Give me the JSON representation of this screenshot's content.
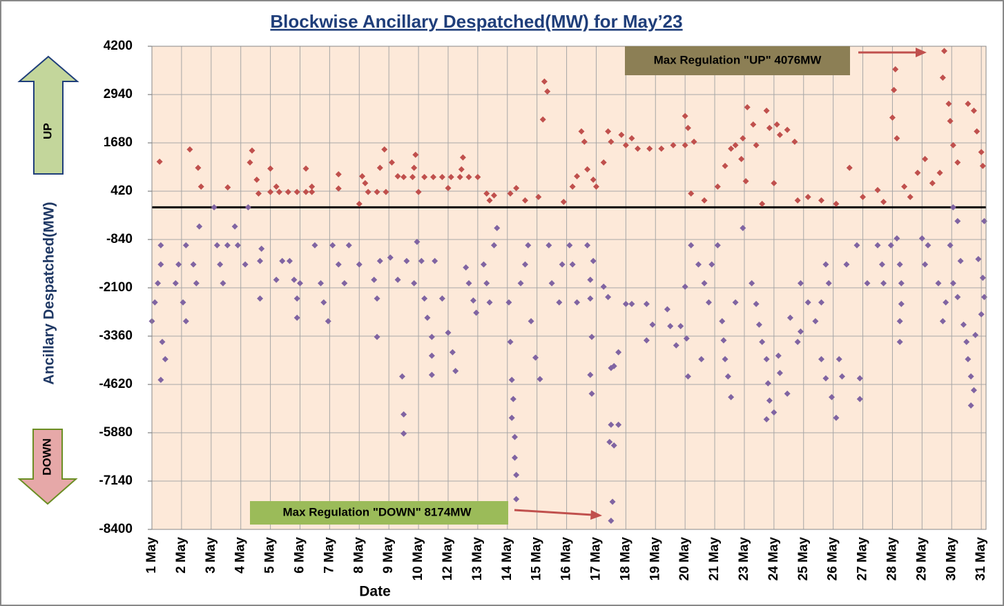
{
  "chart_data": {
    "type": "scatter",
    "title": "Blockwise Ancillary Despatched(MW) for  May’23",
    "x_label": "Date",
    "y_label": "Ancillary Despatched(MW)",
    "categories": [
      "1 May",
      "2 May",
      "3 May",
      "4 May",
      "5 May",
      "6 May",
      "7 May",
      "8 May",
      "9 May",
      "10 May",
      "12 May",
      "13 May",
      "14 May",
      "15 May",
      "16 May",
      "17 May",
      "18 May",
      "19 May",
      "20 May",
      "21 May",
      "23 May",
      "24 May",
      "25 May",
      "26 May",
      "27 May",
      "28 May",
      "29 May",
      "30 May",
      "31 May"
    ],
    "xlim": [
      1,
      29.16
    ],
    "ylim": [
      -8400,
      4200
    ],
    "yticks": [
      4200,
      2940,
      1680,
      420,
      -840,
      -2100,
      -3360,
      -4620,
      -5880,
      -7140,
      -8400
    ],
    "grid": true,
    "series": [
      {
        "name": "UP",
        "color": "#c0504d",
        "x": [
          1.26,
          2.28,
          2.56,
          2.66,
          3.56,
          4.38,
          4.31,
          4.54,
          4.6,
          5.0,
          5.3,
          5.6,
          5.9,
          6.2,
          6.4,
          5.0,
          5.2,
          6.2,
          6.4,
          7.3,
          7.3,
          8.0,
          8.1,
          8.2,
          8.3,
          8.6,
          8.9,
          8.7,
          8.85,
          9.1,
          9.3,
          9.5,
          9.8,
          10.2,
          10.5,
          10.8,
          11.1,
          11.4,
          11.7,
          12.0,
          9.9,
          9.85,
          10.0,
          11.0,
          11.5,
          11.45,
          12.3,
          12.4,
          12.55,
          13.1,
          13.3,
          13.6,
          14.25,
          14.35,
          14.2,
          14.05,
          14.9,
          15.2,
          15.35,
          15.5,
          15.6,
          15.7,
          15.9,
          16.0,
          16.25,
          16.4,
          16.5,
          16.85,
          17.0,
          17.2,
          17.4,
          17.8,
          18.2,
          18.6,
          19.0,
          19.3,
          19.0,
          19.1,
          19.2,
          19.65,
          20.1,
          20.35,
          20.55,
          20.7,
          20.95,
          21.1,
          21.3,
          21.4,
          20.9,
          21.05,
          21.75,
          21.85,
          22.1,
          22.2,
          22.45,
          22.7,
          22.0,
          21.6,
          22.8,
          23.15,
          23.6,
          24.1,
          24.55,
          25.0,
          25.5,
          25.7,
          26.1,
          26.05,
          26.0,
          26.15,
          26.4,
          26.6,
          26.85,
          27.1,
          27.35,
          27.6,
          27.75,
          27.7,
          27.9,
          27.95,
          28.05,
          28.2,
          28.55,
          28.75,
          28.85,
          29.0,
          29.05
        ],
        "values": [
          1190,
          1510,
          1030,
          540,
          520,
          1480,
          1170,
          720,
          360,
          400,
          400,
          400,
          400,
          400,
          400,
          1010,
          540,
          1010,
          540,
          860,
          490,
          90,
          810,
          630,
          400,
          400,
          400,
          1030,
          1510,
          1170,
          810,
          790,
          790,
          790,
          790,
          790,
          790,
          790,
          790,
          790,
          1370,
          1030,
          400,
          500,
          1300,
          990,
          360,
          180,
          310,
          360,
          500,
          180,
          3280,
          3020,
          2290,
          270,
          140,
          540,
          810,
          1980,
          1710,
          990,
          720,
          540,
          1170,
          1980,
          1710,
          1890,
          1620,
          1800,
          1530,
          1530,
          1530,
          1620,
          1620,
          1710,
          2380,
          2070,
          360,
          180,
          540,
          1080,
          1530,
          1620,
          1800,
          2610,
          2160,
          1620,
          1260,
          680,
          2520,
          2070,
          2160,
          1890,
          2020,
          1710,
          630,
          90,
          180,
          270,
          180,
          90,
          1030,
          270,
          450,
          140,
          3600,
          3060,
          2340,
          1800,
          540,
          270,
          900,
          1260,
          630,
          900,
          4076,
          3380,
          2700,
          2250,
          1620,
          1170,
          2700,
          2520,
          1980,
          1440,
          1080
        ]
      },
      {
        "name": "DOWN",
        "color": "#8064a2",
        "x": [
          1.0,
          1.1,
          1.2,
          1.3,
          1.3,
          1.35,
          1.45,
          1.3,
          1.8,
          1.9,
          2.05,
          2.15,
          2.15,
          2.4,
          2.5,
          2.6,
          3.1,
          3.2,
          3.3,
          3.4,
          3.55,
          3.8,
          3.9,
          4.15,
          4.25,
          4.7,
          4.65,
          4.65,
          5.2,
          5.4,
          5.65,
          5.8,
          5.9,
          5.9,
          6.0,
          6.5,
          6.7,
          6.8,
          6.95,
          7.1,
          7.3,
          7.5,
          7.65,
          8.0,
          8.5,
          8.6,
          8.6,
          8.7,
          9.05,
          9.3,
          9.45,
          9.5,
          9.5,
          9.6,
          9.85,
          9.95,
          10.1,
          10.2,
          10.3,
          10.45,
          10.45,
          10.45,
          10.55,
          10.8,
          11.0,
          11.15,
          11.25,
          11.6,
          11.7,
          11.85,
          11.95,
          12.2,
          12.3,
          12.4,
          12.55,
          12.65,
          13.05,
          13.1,
          13.15,
          13.2,
          13.15,
          13.25,
          13.25,
          13.3,
          13.3,
          13.45,
          13.6,
          13.7,
          13.8,
          13.95,
          14.1,
          14.4,
          14.5,
          14.75,
          14.85,
          15.1,
          15.2,
          15.35,
          15.7,
          15.8,
          15.8,
          15.85,
          15.8,
          15.85,
          15.9,
          16.25,
          16.4,
          16.5,
          16.6,
          16.75,
          16.45,
          16.6,
          16.5,
          16.75,
          16.55,
          16.5,
          17.0,
          17.2,
          17.7,
          17.9,
          17.7,
          18.4,
          18.5,
          18.7,
          18.85,
          19.0,
          19.05,
          19.1,
          19.2,
          19.45,
          19.55,
          19.65,
          19.8,
          19.9,
          20.1,
          20.25,
          20.3,
          20.35,
          20.45,
          20.55,
          20.7,
          20.95,
          21.25,
          21.4,
          21.5,
          21.6,
          21.75,
          21.8,
          21.85,
          21.75,
          22.0,
          22.2,
          22.45,
          22.15,
          22.55,
          22.8,
          22.9,
          22.9,
          23.15,
          23.4,
          23.6,
          23.75,
          23.85,
          23.6,
          23.75,
          23.95,
          24.1,
          24.2,
          24.3,
          24.45,
          24.8,
          24.9,
          24.9,
          25.15,
          25.5,
          25.65,
          25.7,
          25.95,
          26.15,
          26.25,
          26.3,
          26.3,
          26.25,
          26.25,
          27.0,
          27.1,
          27.2,
          27.55,
          27.7,
          27.8,
          27.95,
          28.05,
          28.2,
          28.05,
          28.2,
          28.3,
          28.4,
          28.5,
          28.55,
          28.65,
          28.75,
          28.65,
          28.8,
          28.9,
          29.0,
          29.05,
          29.1,
          29.1
        ],
        "values": [
          -2970,
          -2480,
          -1980,
          -1490,
          -990,
          -3510,
          -3960,
          -4500,
          -1980,
          -1490,
          -2480,
          -2970,
          -990,
          -1490,
          -1980,
          -500,
          0,
          -990,
          -1490,
          -1980,
          -990,
          -500,
          -990,
          -1490,
          0,
          -1080,
          -1400,
          -2380,
          -1890,
          -1400,
          -1400,
          -1890,
          -2380,
          -2880,
          -1980,
          -990,
          -1980,
          -2480,
          -2970,
          -990,
          -1490,
          -1980,
          -990,
          -1490,
          -1890,
          -2380,
          -3380,
          -1400,
          -1310,
          -1890,
          -4410,
          -5400,
          -5900,
          -1400,
          -1980,
          -900,
          -1400,
          -2380,
          -2880,
          -3380,
          -3870,
          -4370,
          -1400,
          -2380,
          -3270,
          -3780,
          -4270,
          -1570,
          -1980,
          -2430,
          -2750,
          -1490,
          -1980,
          -2480,
          -990,
          -540,
          -2480,
          -3510,
          -4500,
          -5000,
          -5490,
          -5990,
          -6530,
          -6980,
          -7610,
          -1980,
          -1490,
          -990,
          -2970,
          -3920,
          -4480,
          -990,
          -1980,
          -2480,
          -1490,
          -990,
          -1490,
          -2480,
          -990,
          -1890,
          -2380,
          -3380,
          -4370,
          -4860,
          -1400,
          -2070,
          -2340,
          -4190,
          -4140,
          -3780,
          -6120,
          -6210,
          -5670,
          -5670,
          -7680,
          -8174,
          -2520,
          -2520,
          -2520,
          -3060,
          -3470,
          -2660,
          -3100,
          -3600,
          -3100,
          -2070,
          -3420,
          -4410,
          -990,
          -1490,
          -3960,
          -1980,
          -2480,
          -1490,
          -990,
          -2970,
          -3470,
          -3960,
          -4410,
          -4950,
          -2480,
          -540,
          -1980,
          -2520,
          -3060,
          -3510,
          -3960,
          -4590,
          -5040,
          -5530,
          -5350,
          -4320,
          -4860,
          -3870,
          -2880,
          -3510,
          -3240,
          -1980,
          -2480,
          -2970,
          -2480,
          -1490,
          -1980,
          -3960,
          -4460,
          -4950,
          -5490,
          -3960,
          -4410,
          -1490,
          -990,
          -4460,
          -5000,
          -1980,
          -990,
          -1490,
          -1980,
          -990,
          -810,
          -1490,
          -1980,
          -2520,
          -2970,
          -3510,
          -810,
          -1490,
          -990,
          -1980,
          -2970,
          -2480,
          -990,
          0,
          -360,
          -1980,
          -2340,
          -1400,
          -3060,
          -3510,
          -3960,
          -4410,
          -4770,
          -5170,
          -3330,
          -1350,
          -2790,
          -1840,
          -2340,
          -360
        ]
      }
    ],
    "annotations": [
      {
        "text": "Max Regulation \"UP\" 4076MW"
      },
      {
        "text": "Max Regulation \"DOWN\" 8174MW"
      }
    ]
  }
}
